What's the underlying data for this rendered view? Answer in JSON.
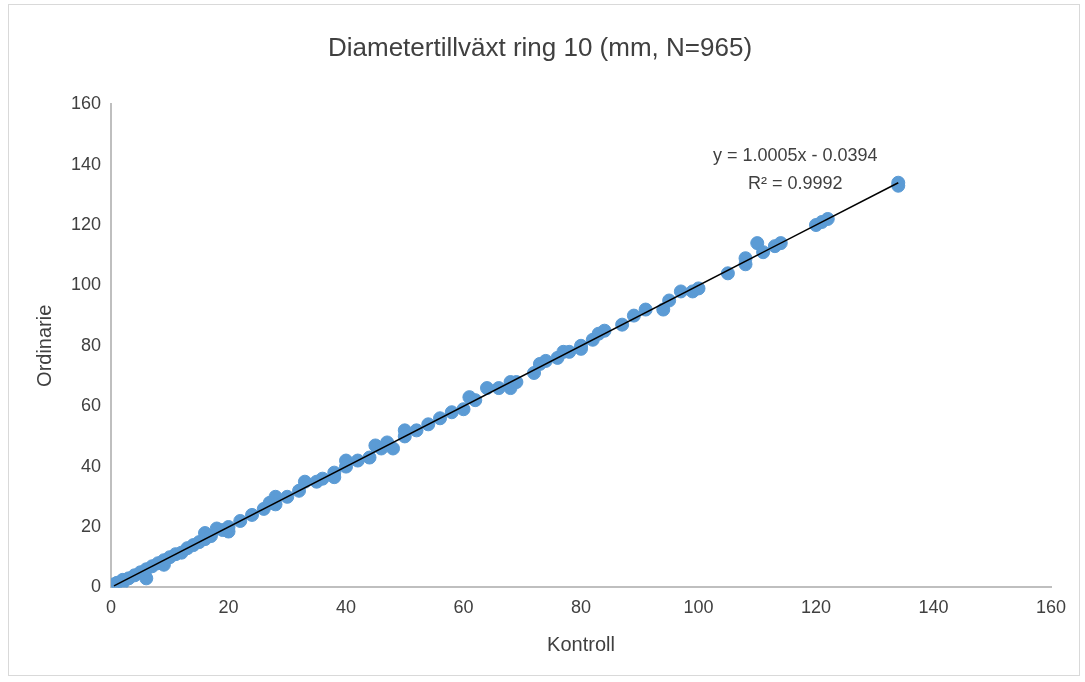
{
  "chart_data": {
    "type": "scatter",
    "title": "Diametertillväxt ring 10 (mm, N=965)",
    "xlabel": "Kontroll",
    "ylabel": "Ordinarie",
    "annotations": [
      "y = 1.0005x - 0.0394",
      "R² = 0.9992"
    ],
    "xlim": [
      0,
      160
    ],
    "xticks": [
      0,
      20,
      40,
      60,
      80,
      100,
      120,
      140,
      160
    ],
    "ylim": [
      0,
      160
    ],
    "yticks": [
      0,
      20,
      40,
      60,
      80,
      100,
      120,
      140,
      160
    ],
    "grid": false,
    "legend": false,
    "marker": "circle",
    "series": [
      {
        "type": "scatter",
        "color": "#5b9bd5",
        "x": [
          0.5,
          1,
          2,
          2,
          3,
          4,
          5,
          6,
          6,
          7,
          8,
          9,
          9,
          10,
          11,
          12,
          13,
          14,
          15,
          16,
          16,
          17,
          18,
          19,
          20,
          20,
          22,
          24,
          26,
          27,
          28,
          28,
          30,
          32,
          33,
          35,
          36,
          38,
          38,
          40,
          40,
          42,
          44,
          45,
          46,
          47,
          48,
          50,
          50,
          52,
          54,
          56,
          58,
          60,
          61,
          62,
          64,
          66,
          68,
          68,
          69,
          72,
          73,
          74,
          76,
          77,
          78,
          80,
          80,
          82,
          83,
          84,
          87,
          89,
          91,
          94,
          95,
          97,
          99,
          100,
          105,
          108,
          108,
          110,
          111,
          113,
          114,
          120,
          121,
          122,
          134,
          134
        ],
        "values": [
          1,
          1.5,
          1.5,
          2.5,
          3,
          4,
          5,
          3,
          6,
          7,
          8,
          7.5,
          9,
          10,
          11,
          11.5,
          13,
          14,
          15,
          18,
          16,
          17,
          19.5,
          19,
          18.5,
          20,
          22,
          24,
          26,
          28,
          30,
          27.5,
          30,
          32,
          35,
          35,
          36,
          38,
          36.5,
          42,
          40,
          42,
          43,
          47,
          46,
          48,
          46,
          52,
          50,
          52,
          54,
          56,
          58,
          59,
          63,
          62,
          66,
          66,
          66,
          68,
          68,
          71,
          74,
          75,
          76,
          78,
          78,
          80,
          79,
          82,
          84,
          85,
          87,
          90,
          92,
          92,
          95,
          98,
          98,
          99,
          104,
          109,
          107,
          114,
          111,
          113,
          114,
          120,
          121,
          122,
          133,
          134
        ]
      },
      {
        "type": "line",
        "color": "#000000",
        "line_style": "solid",
        "marker": "none",
        "x": [
          0.5,
          134
        ],
        "values": [
          0.5,
          134
        ]
      }
    ]
  }
}
